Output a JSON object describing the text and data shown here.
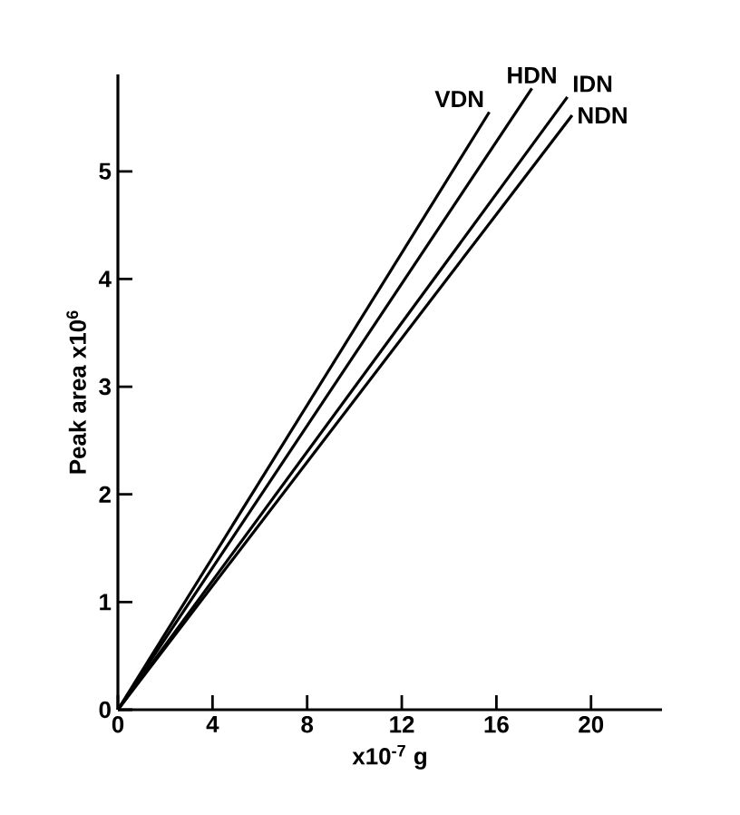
{
  "chart_data": {
    "type": "line",
    "xlabel": "x10$^{-7}$ g",
    "ylabel": "Peak area x10$^{6}$",
    "xlim": [
      0,
      23
    ],
    "ylim": [
      0,
      5.9
    ],
    "xticks": [
      0,
      4,
      8,
      12,
      16,
      20
    ],
    "yticks": [
      0,
      1,
      2,
      3,
      4,
      5
    ],
    "grid": false,
    "legend": false,
    "marker": "none",
    "line_style": "solid",
    "series": [
      {
        "name": "VDN",
        "color": "#000000",
        "x": [
          0,
          15.7
        ],
        "values": [
          0,
          5.55
        ]
      },
      {
        "name": "HDN",
        "color": "#000000",
        "x": [
          0,
          17.5
        ],
        "values": [
          0,
          5.77
        ]
      },
      {
        "name": "IDN",
        "color": "#000000",
        "x": [
          0,
          19.0
        ],
        "values": [
          0,
          5.69
        ]
      },
      {
        "name": "NDN",
        "color": "#000000",
        "x": [
          0,
          19.2
        ],
        "values": [
          0,
          5.52
        ]
      }
    ]
  }
}
